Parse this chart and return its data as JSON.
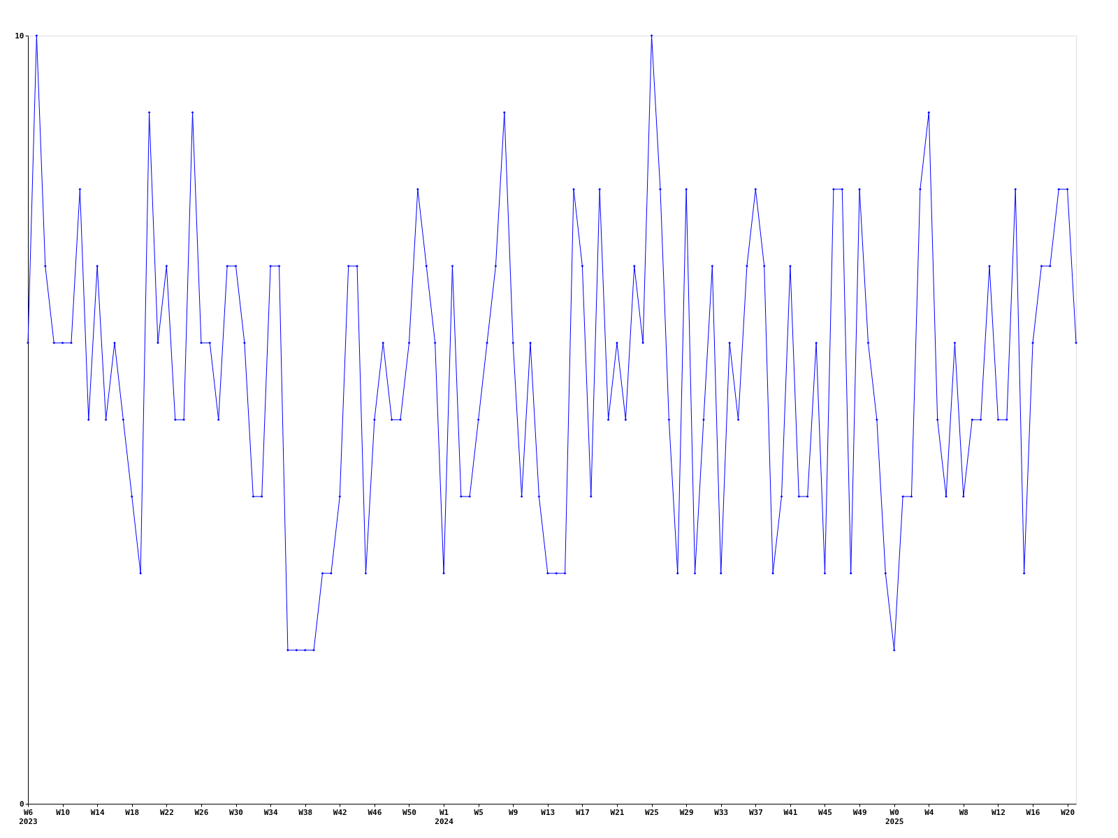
{
  "chart_data": {
    "type": "line",
    "categories": [
      "W6\n2023",
      null,
      null,
      null,
      "W10",
      null,
      null,
      null,
      "W14",
      null,
      null,
      null,
      "W18",
      null,
      null,
      null,
      "W22",
      null,
      null,
      null,
      "W26",
      null,
      null,
      null,
      "W30",
      null,
      null,
      null,
      "W34",
      null,
      null,
      null,
      "W38",
      null,
      null,
      null,
      "W42",
      null,
      null,
      null,
      "W46",
      null,
      null,
      null,
      "W50",
      null,
      null,
      null,
      "W1\n2024",
      null,
      null,
      null,
      "W5",
      null,
      null,
      null,
      "W9",
      null,
      null,
      null,
      "W13",
      null,
      null,
      null,
      "W17",
      null,
      null,
      null,
      "W21",
      null,
      null,
      null,
      "W25",
      null,
      null,
      null,
      "W29",
      null,
      null,
      null,
      "W33",
      null,
      null,
      null,
      "W37",
      null,
      null,
      null,
      "W41",
      null,
      null,
      null,
      "W45",
      null,
      null,
      null,
      "W49",
      null,
      null,
      null,
      "W0\n2025",
      null,
      null,
      null,
      "W4",
      null,
      null,
      null,
      "W8",
      null,
      null,
      null,
      "W12",
      null,
      null,
      null,
      "W16",
      null,
      null,
      null,
      "W20",
      null
    ],
    "series": [
      {
        "color": "#0000ff",
        "values": [
          6,
          10,
          7,
          6,
          6,
          6,
          8,
          5,
          7,
          5,
          6,
          5,
          4,
          3,
          9,
          6,
          7,
          5,
          5,
          9,
          6,
          6,
          5,
          7,
          7,
          6,
          4,
          4,
          7,
          7,
          2,
          2,
          2,
          2,
          3,
          3,
          4,
          7,
          7,
          3,
          5,
          6,
          5,
          5,
          6,
          8,
          7,
          6,
          3,
          7,
          4,
          4,
          5,
          6,
          7,
          9,
          6,
          4,
          6,
          4,
          3,
          3,
          3,
          8,
          7,
          4,
          8,
          5,
          6,
          5,
          7,
          6,
          10,
          8,
          5,
          3,
          8,
          3,
          5,
          7,
          3,
          6,
          5,
          7,
          8,
          7,
          3,
          4,
          7,
          4,
          4,
          6,
          3,
          8,
          8,
          3,
          8,
          6,
          5,
          3,
          2,
          4,
          4,
          8,
          9,
          5,
          4,
          6,
          4,
          5,
          5,
          7,
          5,
          5,
          8,
          3,
          6,
          7,
          7,
          8,
          8,
          6
        ]
      }
    ],
    "ylim": [
      0,
      10
    ],
    "yticks": [
      0,
      10
    ],
    "grid": false,
    "legend": false,
    "marker": "diamond",
    "line_style": "solid"
  }
}
